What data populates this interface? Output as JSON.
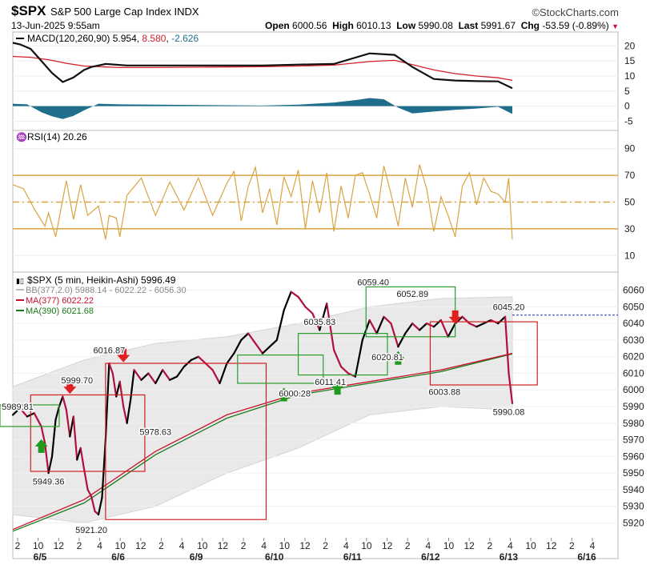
{
  "header": {
    "symbol": "$SPX",
    "description": "S&P 500 Large Cap Index",
    "exchange": "INDX",
    "datetime": "13-Jun-2025 9:55am",
    "brand": "©StockCharts.com",
    "open_label": "Open",
    "open": "6000.56",
    "high_label": "High",
    "high": "6010.13",
    "low_label": "Low",
    "low": "5990.08",
    "last_label": "Last",
    "last": "5991.67",
    "chg_label": "Chg",
    "chg": "-53.59 (-0.89%)",
    "chg_arrow": "▼"
  },
  "colors": {
    "up": "#000000",
    "down": "#b0103a",
    "ema_fast": "#111111",
    "ema_slow": "#d21f2a",
    "hist": "#1f6e8c",
    "rsi": "#d9a441",
    "ma377": "#c8102e",
    "ma390": "#1a7a1a",
    "band": "#e9e9e9",
    "green_box": "#2a9d2a",
    "red_box": "#d02020"
  },
  "chart_data": [
    {
      "type": "line",
      "panel": "macd",
      "title": "MACD(120,260,90) 5.954, 8.580, -2.626",
      "title_parts": {
        "name": "MACD(120,260,90)",
        "macd": "5.954",
        "signal": "8.580",
        "hist": "-2.626"
      },
      "ylim": [
        -7,
        23
      ],
      "yticks": [
        20,
        15,
        10,
        5,
        0,
        -5
      ],
      "series": [
        {
          "name": "MACD",
          "x": [
            0,
            2,
            5,
            8,
            11,
            14,
            17,
            20,
            22,
            26,
            32,
            40,
            50,
            60,
            70,
            80,
            90,
            100,
            107,
            112,
            118,
            124,
            130,
            136,
            140
          ],
          "values": [
            21,
            20.5,
            19,
            15,
            11,
            8,
            9.5,
            12,
            13,
            14,
            13.5,
            13.5,
            13.5,
            13.5,
            13.5,
            13.8,
            14,
            17.5,
            17,
            13,
            9,
            8.5,
            8.3,
            8.2,
            5.95
          ]
        },
        {
          "name": "Signal",
          "x": [
            0,
            5,
            10,
            15,
            20,
            30,
            40,
            50,
            60,
            70,
            80,
            90,
            100,
            107,
            112,
            118,
            124,
            130,
            136,
            140
          ],
          "values": [
            16.5,
            16.2,
            15.4,
            14.2,
            13.3,
            12.8,
            12.8,
            12.9,
            13,
            13.1,
            13.3,
            13.6,
            14.8,
            15.2,
            13.8,
            12,
            10.8,
            10,
            9.4,
            8.58
          ]
        },
        {
          "name": "Histogram",
          "x": [
            0,
            4,
            8,
            11,
            14,
            17,
            20,
            24,
            30,
            40,
            50,
            60,
            70,
            80,
            90,
            96,
            100,
            104,
            108,
            112,
            118,
            124,
            130,
            136,
            140
          ],
          "values": [
            0.8,
            0.6,
            -2,
            -3.4,
            -4.3,
            -3.2,
            -1.4,
            0.8,
            0.6,
            0.5,
            0.4,
            0.3,
            0.2,
            0.5,
            1.2,
            2,
            2.7,
            2.3,
            -0.5,
            -2.4,
            -1.8,
            -1.2,
            -0.8,
            -0.2,
            -2.6
          ]
        }
      ]
    },
    {
      "type": "line",
      "panel": "rsi",
      "title": "RSI(14) 20.26",
      "title_parts": {
        "name": "RSI(14)",
        "value": "20.26"
      },
      "ylim": [
        0,
        100
      ],
      "yticks": [
        90,
        70,
        50,
        30,
        10
      ],
      "levels": [
        70,
        50,
        30
      ],
      "series": [
        {
          "name": "RSI",
          "x": [
            0,
            3,
            6,
            9,
            10,
            12,
            15,
            17,
            19,
            21,
            24,
            26,
            27,
            29,
            30,
            32,
            36,
            40,
            44,
            48,
            52,
            56,
            60,
            62,
            64,
            66,
            68,
            70,
            72,
            74,
            76,
            78,
            80,
            82,
            84,
            86,
            88,
            90,
            92,
            94,
            96,
            98,
            100,
            102,
            104,
            106,
            108,
            110,
            112,
            114,
            116,
            118,
            120,
            122,
            124,
            126,
            128,
            130,
            132,
            134,
            136,
            138,
            139,
            140
          ],
          "values": [
            63,
            60,
            45,
            32,
            42,
            24,
            66,
            37,
            63,
            40,
            47,
            22,
            40,
            38,
            24,
            55,
            68,
            40,
            65,
            44,
            68,
            40,
            64,
            73,
            36,
            62,
            76,
            42,
            60,
            33,
            69,
            54,
            74,
            30,
            66,
            42,
            72,
            28,
            62,
            38,
            70,
            72,
            56,
            38,
            77,
            56,
            32,
            68,
            46,
            78,
            60,
            28,
            54,
            40,
            24,
            62,
            72,
            48,
            68,
            58,
            56,
            50,
            68,
            22
          ]
        }
      ]
    },
    {
      "type": "line",
      "panel": "price",
      "title": "$SPX (5 min, Heikin-Ashi) 5996.49",
      "title_parts": {
        "name": "$SPX (5 min, Heikin-Ashi)",
        "value": "5996.49"
      },
      "legend": [
        {
          "label": "BB(377,2.0) 5988.14 - 6022.22 - 6056.30"
        },
        {
          "label": "MA(377) 6022.22"
        },
        {
          "label": "MA(390) 6021.68"
        }
      ],
      "ylim": [
        5912,
        6068
      ],
      "yticks": [
        6060,
        6050,
        6040,
        6030,
        6020,
        6010,
        6000,
        5990,
        5980,
        5970,
        5960,
        5950,
        5940,
        5930,
        5920
      ],
      "x_tick_labels": [
        "2",
        "10",
        "12",
        "2",
        "4",
        "10",
        "12",
        "2",
        "4",
        "10",
        "12",
        "2",
        "4",
        "10",
        "12",
        "2",
        "4",
        "10",
        "12",
        "2",
        "4",
        "10",
        "12",
        "2",
        "4",
        "10",
        "12",
        "2",
        "4"
      ],
      "x_date_labels": [
        "6/5",
        "6/6",
        "6/9",
        "6/10",
        "6/11",
        "6/12",
        "6/13",
        "6/16"
      ],
      "series": [
        {
          "name": "Price",
          "x": [
            0,
            2,
            4,
            6,
            8,
            9,
            10,
            11,
            12,
            13,
            14,
            15,
            16,
            17,
            18,
            19,
            20,
            21,
            22,
            23,
            24,
            25,
            26,
            27,
            28,
            29,
            30,
            31,
            32,
            33,
            34,
            36,
            38,
            40,
            42,
            44,
            46,
            48,
            50,
            52,
            54,
            56,
            58,
            60,
            62,
            64,
            66,
            68,
            70,
            72,
            74,
            76,
            78,
            80,
            82,
            84,
            86,
            88,
            90,
            92,
            94,
            96,
            98,
            100,
            102,
            104,
            106,
            108,
            110,
            112,
            114,
            116,
            118,
            120,
            122,
            124,
            126,
            128,
            130,
            132,
            134,
            136,
            138,
            139,
            140
          ],
          "values": [
            5985,
            5989,
            5984,
            5986,
            5978,
            5968,
            5950,
            5960,
            5982,
            5990,
            5996,
            5988,
            5972,
            5984,
            5958,
            5965,
            5952,
            5940,
            5936,
            5927,
            5925,
            5935,
            5970,
            6016,
            6010,
            5996,
            6005,
            5990,
            5980,
            5994,
            6012,
            6006,
            6010,
            6004,
            6012,
            6006,
            6008,
            6014,
            6018,
            6020,
            6016,
            6012,
            6004,
            6016,
            6022,
            6030,
            6034,
            6028,
            6022,
            6026,
            6030,
            6048,
            6059,
            6056,
            6050,
            6046,
            6036,
            6052,
            6024,
            6014,
            6010,
            6008,
            6030,
            6042,
            6034,
            6044,
            6040,
            6026,
            6034,
            6040,
            6036,
            6040,
            6038,
            6042,
            6032,
            6040,
            6044,
            6040,
            6038,
            6040,
            6042,
            6040,
            6044,
            6010,
            5992
          ]
        },
        {
          "name": "MA(377)",
          "x": [
            0,
            20,
            40,
            60,
            80,
            100,
            120,
            140
          ],
          "values": [
            5916,
            5934,
            5963,
            5985,
            5998,
            6005,
            6012,
            6022
          ]
        },
        {
          "name": "MA(390)",
          "x": [
            0,
            20,
            40,
            60,
            80,
            100,
            120,
            140
          ],
          "values": [
            5915,
            5932,
            5961,
            5983,
            5997,
            6004,
            6011,
            6021.7
          ]
        },
        {
          "name": "BB upper",
          "x": [
            0,
            20,
            40,
            60,
            80,
            100,
            120,
            140
          ],
          "values": [
            6002,
            6018,
            6028,
            6032,
            6040,
            6050,
            6055,
            6056
          ]
        },
        {
          "name": "BB lower",
          "x": [
            0,
            20,
            40,
            60,
            80,
            100,
            120,
            140
          ],
          "values": [
            5925,
            5920,
            5930,
            5950,
            5965,
            5985,
            5990,
            5988
          ]
        }
      ],
      "annotations": [
        {
          "text": "5989.81",
          "x": 0,
          "y": 5988
        },
        {
          "text": "5999.70",
          "x": 18,
          "y": 6004
        },
        {
          "text": "5949.36",
          "x": 10,
          "y": 5943
        },
        {
          "text": "6016.87",
          "x": 27,
          "y": 6022
        },
        {
          "text": "5978.63",
          "x": 40,
          "y": 5973
        },
        {
          "text": "5921.20",
          "x": 22,
          "y": 5914
        },
        {
          "text": "6000.28",
          "x": 79,
          "y": 5996
        },
        {
          "text": "6011.41",
          "x": 89,
          "y": 6003
        },
        {
          "text": "6035.83",
          "x": 86,
          "y": 6039
        },
        {
          "text": "6059.40",
          "x": 101,
          "y": 6063
        },
        {
          "text": "6052.89",
          "x": 112,
          "y": 6056
        },
        {
          "text": "6020.81",
          "x": 105,
          "y": 6018
        },
        {
          "text": "6003.88",
          "x": 121,
          "y": 5997
        },
        {
          "text": "6045.20",
          "x": 139,
          "y": 6048
        },
        {
          "text": "5990.08",
          "x": 139,
          "y": 5985
        }
      ],
      "boxes": [
        {
          "color": "red",
          "x0": 5,
          "x1": 37,
          "y0": 5951,
          "y1": 5997
        },
        {
          "color": "red",
          "x0": 26,
          "x1": 71,
          "y0": 5922,
          "y1": 6016
        },
        {
          "color": "green",
          "x0": 63,
          "x1": 87,
          "y0": 6004,
          "y1": 6021
        },
        {
          "color": "green",
          "x0": 80,
          "x1": 105,
          "y0": 6009,
          "y1": 6034
        },
        {
          "color": "green",
          "x0": 99,
          "x1": 124,
          "y0": 6032,
          "y1": 6062
        },
        {
          "color": "red",
          "x0": 117,
          "x1": 147,
          "y0": 6003,
          "y1": 6041
        },
        {
          "color": "green",
          "x0": -5,
          "x1": 13,
          "y0": 5978,
          "y1": 5991
        }
      ],
      "arrows": [
        {
          "dir": "up",
          "x": 8,
          "y": 5966
        },
        {
          "dir": "down",
          "x": 16,
          "y": 6002
        },
        {
          "dir": "down",
          "x": 31,
          "y": 6021
        },
        {
          "dir": "up",
          "x": 76,
          "y": 5997
        },
        {
          "dir": "up",
          "x": 91,
          "y": 6001
        },
        {
          "dir": "up",
          "x": 108,
          "y": 6019
        },
        {
          "dir": "down",
          "x": 124,
          "y": 6044
        }
      ],
      "last_price_level": 6045
    }
  ]
}
